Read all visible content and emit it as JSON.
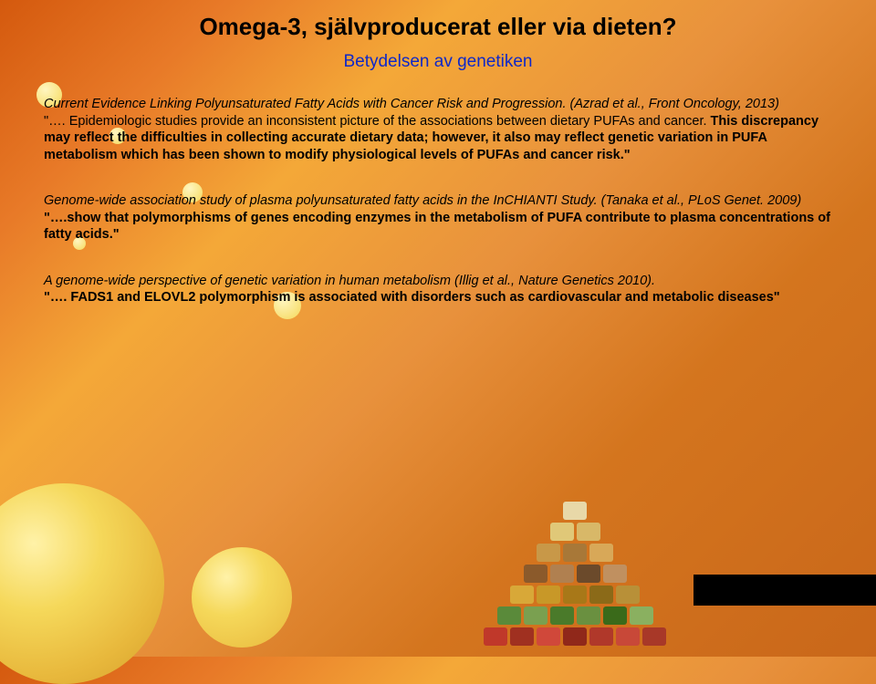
{
  "title": "Omega-3, självproducerat eller via dieten?",
  "subtitle": "Betydelsen av genetiken",
  "block1": {
    "cite": "Current Evidence Linking Polyunsaturated Fatty Acids with Cancer Risk and Progression. (Azrad et al., Front Oncology, 2013)",
    "lead": "\"…. Epidemiologic studies provide an inconsistent picture of the associations between dietary PUFAs and cancer. ",
    "bold": "This discrepancy may reflect the difficulties in collecting accurate dietary data; however, it also may reflect genetic variation in PUFA metabolism which has been shown to modify physiological levels of PUFAs and cancer risk.\""
  },
  "block2": {
    "cite": "Genome-wide association study of plasma polyunsaturated fatty acids in the InCHIANTI Study. (Tanaka et al., PLoS Genet. 2009)",
    "bold": "\"….show that polymorphisms of genes encoding enzymes in the metabolism of PUFA contribute to plasma concentrations of fatty acids.\""
  },
  "block3": {
    "cite": "A genome-wide perspective of genetic variation in human metabolism (Illig et al., Nature Genetics 2010).",
    "bold": "\"…. FADS1 and ELOVL2 polymorphism is associated with disorders such as cardiovascular and metabolic diseases\""
  },
  "pyramid_colors": [
    [
      "#e8d8a8"
    ],
    [
      "#e0c878",
      "#d8b868"
    ],
    [
      "#c89848",
      "#a87838",
      "#d8a858"
    ],
    [
      "#8b5a2b",
      "#b08050",
      "#6b4a2b",
      "#c09060"
    ],
    [
      "#d8a838",
      "#c89828",
      "#a87818",
      "#8b6a18",
      "#b89038"
    ],
    [
      "#5a8a3a",
      "#7aa050",
      "#4a7a2a",
      "#6a9040",
      "#3a6a1a",
      "#8ab060"
    ],
    [
      "#c0382a",
      "#a03020",
      "#d0483a",
      "#90281a",
      "#b0382a",
      "#c84838",
      "#a83828"
    ]
  ]
}
